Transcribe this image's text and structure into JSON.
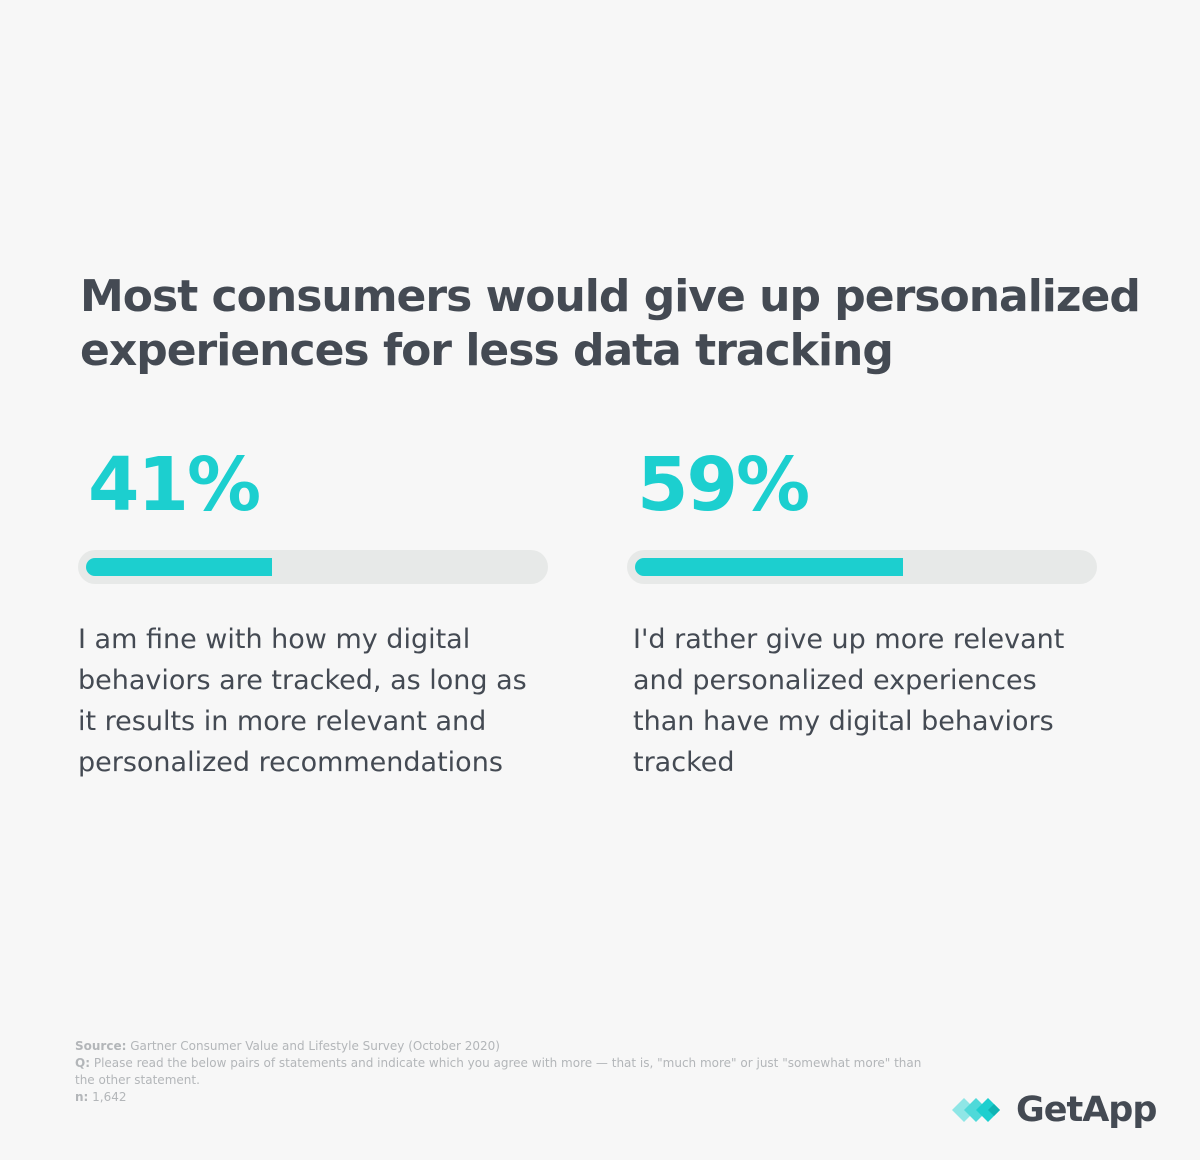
{
  "title": "Most consumers would give up personalized experiences for less data tracking",
  "chart_data": {
    "type": "bar",
    "title": "Most consumers would give up personalized experiences for less data tracking",
    "categories": [
      "I am fine with how my digital behaviors are tracked, as long as it results in more relevant and personalized recommendations",
      "I'd rather give up more relevant and personalized experiences than have my digital behaviors tracked"
    ],
    "values": [
      41,
      59
    ],
    "value_labels": [
      "41%",
      "59%"
    ],
    "unit": "%",
    "ylim": [
      0,
      100
    ],
    "bar_color": "#1ccfcf",
    "track_color": "#e7e9e8"
  },
  "footer": {
    "source_label": "Source:",
    "source_text": "Gartner Consumer Value and Lifestyle Survey (October 2020)",
    "question_label": "Q:",
    "question_text": "Please read the below pairs of statements and indicate which you agree with more — that is, \"much more\" or just \"somewhat more\" than the other statement.",
    "n_label": "n:",
    "n_text": "1,642"
  },
  "logo": {
    "text": "GetApp"
  },
  "colors": {
    "accent": "#1ccfcf",
    "text": "#444a53",
    "muted": "#b3b6b9",
    "background": "#f7f7f7"
  }
}
